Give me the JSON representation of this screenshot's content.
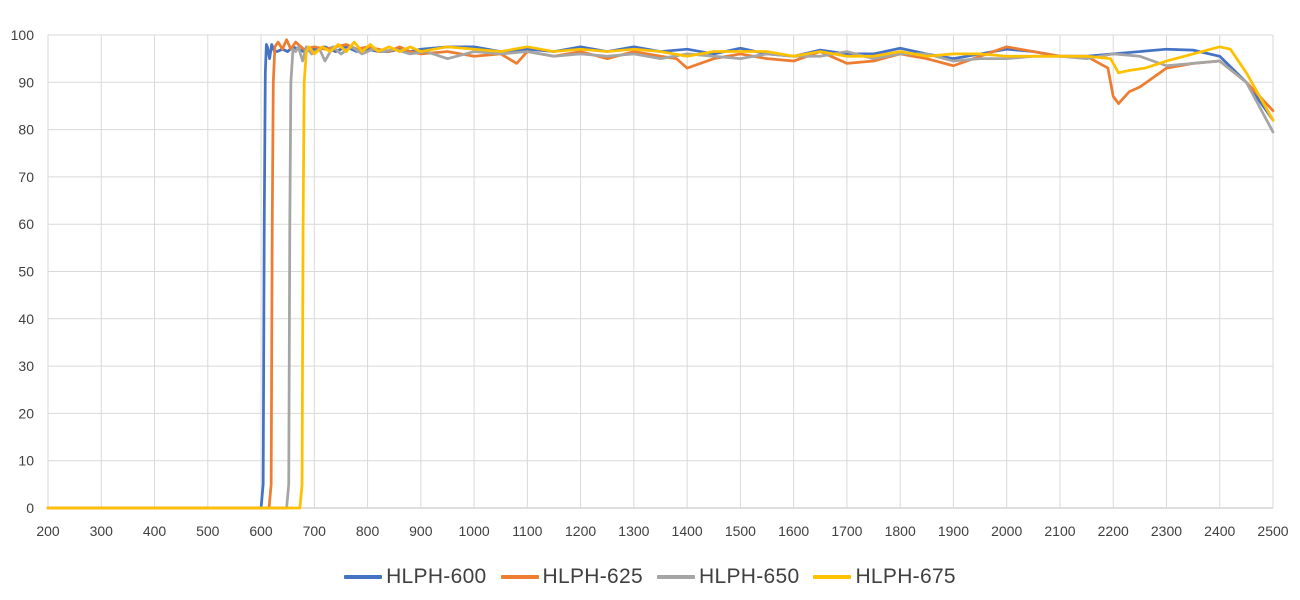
{
  "chart_data": {
    "type": "line",
    "title": "",
    "xlabel": "",
    "ylabel": "",
    "xlim": [
      200,
      2500
    ],
    "ylim": [
      0,
      100
    ],
    "x_ticks": [
      200,
      300,
      400,
      500,
      600,
      700,
      800,
      900,
      1000,
      1100,
      1200,
      1300,
      1400,
      1500,
      1600,
      1700,
      1800,
      1900,
      2000,
      2100,
      2200,
      2300,
      2400,
      2500
    ],
    "y_ticks": [
      0,
      10,
      20,
      30,
      40,
      50,
      60,
      70,
      80,
      90,
      100
    ],
    "grid": true,
    "legend_position": "bottom",
    "series": [
      {
        "name": "HLPH-600",
        "color": "#4472C4",
        "x": [
          200,
          600,
          604,
          606,
          608,
          610,
          612,
          616,
          620,
          625,
          630,
          640,
          650,
          660,
          680,
          700,
          720,
          740,
          760,
          780,
          800,
          820,
          840,
          860,
          880,
          900,
          950,
          1000,
          1050,
          1100,
          1150,
          1200,
          1250,
          1300,
          1350,
          1400,
          1450,
          1500,
          1550,
          1600,
          1650,
          1700,
          1750,
          1800,
          1850,
          1900,
          1950,
          2000,
          2050,
          2100,
          2150,
          2200,
          2250,
          2300,
          2350,
          2400,
          2450,
          2500
        ],
        "y": [
          0,
          0,
          5,
          60,
          92,
          98,
          97.5,
          95,
          98,
          96.5,
          96.5,
          97,
          96.5,
          97.5,
          96.5,
          97,
          97.5,
          96.5,
          97.5,
          96.5,
          97,
          96.5,
          96.5,
          97,
          96.5,
          97,
          97.5,
          97.5,
          96.5,
          97,
          96.5,
          97.5,
          96.5,
          97.5,
          96.5,
          97,
          96,
          97.2,
          96,
          95.5,
          96.8,
          96,
          96,
          97.2,
          96,
          95,
          96,
          97,
          96.5,
          95.5,
          95.5,
          96,
          96.5,
          97,
          96.8,
          95.5,
          90,
          82
        ]
      },
      {
        "name": "HLPH-625",
        "color": "#ED7D31",
        "x": [
          200,
          615,
          619,
          621,
          623,
          626,
          632,
          640,
          648,
          656,
          665,
          680,
          700,
          720,
          740,
          760,
          780,
          800,
          820,
          840,
          860,
          880,
          900,
          950,
          1000,
          1050,
          1080,
          1100,
          1150,
          1200,
          1250,
          1300,
          1350,
          1380,
          1400,
          1450,
          1500,
          1550,
          1600,
          1650,
          1700,
          1750,
          1800,
          1850,
          1900,
          1950,
          2000,
          2050,
          2100,
          2150,
          2190,
          2200,
          2210,
          2230,
          2250,
          2300,
          2350,
          2400,
          2450,
          2500
        ],
        "y": [
          0,
          0,
          5,
          60,
          90,
          97.5,
          98.5,
          97,
          99,
          97,
          98.5,
          97,
          97.5,
          97,
          97.5,
          98,
          97,
          97.5,
          97,
          96.5,
          97.5,
          96.5,
          96,
          96.5,
          95.5,
          96,
          94,
          96.5,
          95.5,
          96.5,
          95,
          96.5,
          95.5,
          95,
          93,
          95,
          96,
          95,
          94.5,
          96.5,
          94,
          94.5,
          96,
          95,
          93.5,
          95.5,
          97.5,
          96.5,
          95.5,
          95.5,
          93,
          87,
          85.5,
          88,
          89,
          93,
          94,
          94.5,
          90,
          84
        ]
      },
      {
        "name": "HLPH-650",
        "color": "#A5A5A5",
        "x": [
          200,
          648,
          652,
          654,
          656,
          660,
          665,
          670,
          678,
          685,
          695,
          710,
          720,
          735,
          750,
          770,
          790,
          810,
          830,
          850,
          880,
          910,
          950,
          1000,
          1050,
          1100,
          1150,
          1200,
          1250,
          1300,
          1350,
          1400,
          1450,
          1500,
          1550,
          1600,
          1650,
          1700,
          1750,
          1800,
          1850,
          1900,
          1950,
          2000,
          2050,
          2100,
          2150,
          2200,
          2250,
          2300,
          2350,
          2400,
          2450,
          2500
        ],
        "y": [
          0,
          0,
          5,
          60,
          90,
          97,
          96.5,
          97.5,
          94.5,
          97.5,
          96,
          97,
          94.5,
          97.5,
          96,
          97.5,
          96,
          97,
          96.5,
          97,
          96,
          96.5,
          95,
          96.5,
          96,
          96.5,
          95.5,
          96,
          95.5,
          96,
          95,
          96,
          95.5,
          95,
          96,
          95.5,
          95.5,
          96.5,
          95,
          96,
          96,
          94.5,
          95,
          95,
          95.5,
          95.5,
          95,
          96,
          95.5,
          93.5,
          94,
          94.5,
          90,
          79.5
        ]
      },
      {
        "name": "HLPH-675",
        "color": "#FFC000",
        "x": [
          200,
          673,
          677,
          679,
          681,
          685,
          690,
          700,
          715,
          730,
          745,
          760,
          775,
          790,
          805,
          820,
          840,
          860,
          880,
          900,
          950,
          1000,
          1050,
          1100,
          1150,
          1200,
          1250,
          1300,
          1350,
          1400,
          1450,
          1500,
          1550,
          1600,
          1650,
          1700,
          1750,
          1800,
          1850,
          1900,
          1950,
          2000,
          2050,
          2100,
          2150,
          2195,
          2210,
          2230,
          2260,
          2300,
          2350,
          2400,
          2420,
          2450,
          2500
        ],
        "y": [
          0,
          0,
          5,
          60,
          90,
          96.5,
          97.5,
          96,
          97.5,
          96.5,
          98,
          96.5,
          98.5,
          96.5,
          98,
          96.5,
          97.5,
          96.5,
          97.5,
          96.5,
          97.5,
          97,
          96.5,
          97.5,
          96.5,
          97,
          96.5,
          97,
          96.5,
          95.5,
          96.5,
          96.5,
          96.5,
          95.5,
          96.5,
          95.5,
          95.5,
          96.5,
          95.5,
          96,
          96,
          95.5,
          95.5,
          95.5,
          95.5,
          95,
          92,
          92.5,
          93,
          94.5,
          96,
          97.5,
          97,
          92,
          82
        ]
      }
    ]
  }
}
